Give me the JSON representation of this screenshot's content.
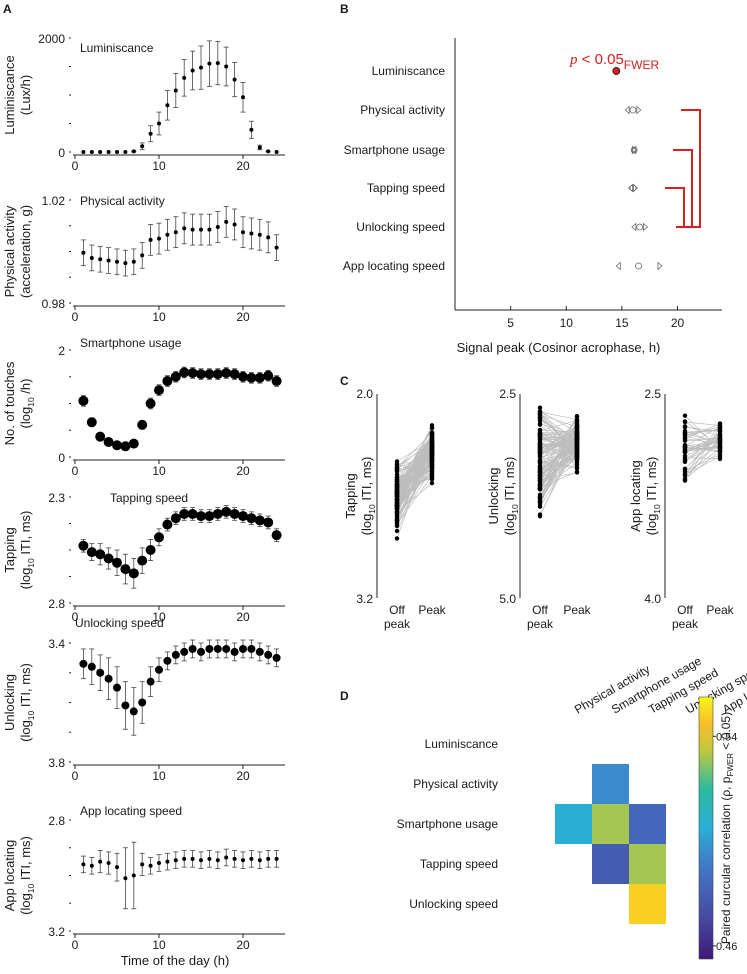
{
  "figure": {
    "panel_labels": [
      "A",
      "B",
      "C",
      "D"
    ],
    "shared_xlabel": "Time of the day (h)"
  },
  "chart_data": [
    {
      "id": "A1",
      "type": "scatter",
      "panel_label": "Luminiscance",
      "ylabel": [
        "Luminiscance",
        "(Lux/h)"
      ],
      "xlabel": "",
      "xlim": [
        0,
        25
      ],
      "ylim": [
        0,
        2000
      ],
      "ytick_labels": [
        "2000",
        "0"
      ],
      "xticks": [
        0,
        10,
        20
      ],
      "xtick_labels": [
        "0",
        "10",
        "20"
      ],
      "invert_y": false,
      "marker": "small",
      "x": [
        1,
        2,
        3,
        4,
        5,
        6,
        7,
        8,
        9,
        10,
        11,
        12,
        13,
        14,
        15,
        16,
        17,
        18,
        19,
        20,
        21,
        22,
        23,
        24
      ],
      "y": [
        0,
        0,
        0,
        0,
        0,
        0,
        10,
        100,
        320,
        500,
        820,
        1080,
        1300,
        1430,
        1480,
        1550,
        1560,
        1500,
        1270,
        960,
        390,
        80,
        10,
        0
      ],
      "err": [
        0,
        0,
        0,
        0,
        0,
        0,
        10,
        60,
        140,
        200,
        260,
        300,
        320,
        340,
        380,
        400,
        380,
        340,
        300,
        260,
        150,
        40,
        5,
        0
      ]
    },
    {
      "id": "A2",
      "type": "scatter",
      "panel_label": "Physical activity",
      "ylabel": [
        "Physical activity",
        "(acceleration, g)"
      ],
      "xlabel": "",
      "xlim": [
        0,
        25
      ],
      "ylim": [
        0.98,
        1.02
      ],
      "ytick_labels": [
        "1.02",
        "0.98"
      ],
      "xticks": [
        0,
        10,
        20
      ],
      "xtick_labels": [
        "0",
        "10",
        "20"
      ],
      "invert_y": false,
      "marker": "small",
      "x": [
        1,
        2,
        3,
        4,
        5,
        6,
        7,
        8,
        9,
        10,
        11,
        12,
        13,
        14,
        15,
        16,
        17,
        18,
        19,
        20,
        21,
        22,
        23,
        24
      ],
      "y": [
        0.9995,
        0.9975,
        0.997,
        0.9965,
        0.996,
        0.9955,
        0.996,
        0.9985,
        1.0045,
        1.005,
        1.0065,
        1.0075,
        1.009,
        1.0085,
        1.0085,
        1.0085,
        1.0095,
        1.0115,
        1.0105,
        1.0075,
        1.007,
        1.0065,
        1.0055,
        1.0015
      ],
      "err": [
        0.005,
        0.005,
        0.005,
        0.005,
        0.005,
        0.005,
        0.005,
        0.005,
        0.006,
        0.006,
        0.006,
        0.006,
        0.006,
        0.006,
        0.006,
        0.006,
        0.006,
        0.006,
        0.006,
        0.006,
        0.006,
        0.006,
        0.006,
        0.005
      ]
    },
    {
      "id": "A3",
      "type": "scatter",
      "panel_label": "Smartphone usage",
      "ylabel": [
        "No. of touches",
        "(log10 /h)"
      ],
      "xlabel": "",
      "xlim": [
        0,
        25
      ],
      "ylim": [
        0,
        2
      ],
      "ytick_labels": [
        "2",
        "0"
      ],
      "xticks": [
        0,
        10,
        20
      ],
      "xtick_labels": [
        "0",
        "10",
        "20"
      ],
      "invert_y": false,
      "marker": "large",
      "x": [
        1,
        2,
        3,
        4,
        5,
        6,
        7,
        8,
        9,
        10,
        11,
        12,
        13,
        14,
        15,
        16,
        17,
        18,
        19,
        20,
        21,
        22,
        23,
        24
      ],
      "y": [
        1.05,
        0.65,
        0.38,
        0.28,
        0.22,
        0.2,
        0.25,
        0.6,
        1.0,
        1.25,
        1.42,
        1.5,
        1.58,
        1.57,
        1.55,
        1.55,
        1.55,
        1.57,
        1.55,
        1.5,
        1.48,
        1.48,
        1.52,
        1.42
      ],
      "err": [
        0.1,
        0.08,
        0.06,
        0.05,
        0.05,
        0.05,
        0.05,
        0.08,
        0.1,
        0.1,
        0.1,
        0.1,
        0.1,
        0.1,
        0.1,
        0.1,
        0.1,
        0.1,
        0.1,
        0.1,
        0.1,
        0.1,
        0.1,
        0.1
      ]
    },
    {
      "id": "A4",
      "type": "scatter",
      "panel_label": "Tapping speed",
      "ylabel": [
        "Tapping",
        "(log10 ITI, ms)"
      ],
      "xlabel": "",
      "xlim": [
        0,
        25
      ],
      "ylim": [
        2.3,
        2.8
      ],
      "ytick_labels": [
        "2.3",
        "2.8"
      ],
      "xticks": [
        0,
        10,
        20
      ],
      "xtick_labels": [
        "0",
        "10",
        "20"
      ],
      "invert_y": true,
      "marker": "large",
      "x": [
        1,
        2,
        3,
        4,
        5,
        6,
        7,
        8,
        9,
        10,
        11,
        12,
        13,
        14,
        15,
        16,
        17,
        18,
        19,
        20,
        21,
        22,
        23,
        24
      ],
      "y": [
        2.53,
        2.56,
        2.57,
        2.59,
        2.61,
        2.64,
        2.66,
        2.6,
        2.55,
        2.49,
        2.43,
        2.4,
        2.38,
        2.38,
        2.39,
        2.39,
        2.38,
        2.37,
        2.38,
        2.39,
        2.4,
        2.41,
        2.42,
        2.48
      ],
      "err": [
        0.03,
        0.04,
        0.05,
        0.05,
        0.06,
        0.07,
        0.07,
        0.06,
        0.05,
        0.04,
        0.03,
        0.03,
        0.03,
        0.03,
        0.03,
        0.03,
        0.03,
        0.03,
        0.03,
        0.03,
        0.03,
        0.03,
        0.03,
        0.03
      ]
    },
    {
      "id": "A5",
      "type": "scatter",
      "panel_label": "Unlocking speed",
      "ylabel": [
        "Unlocking",
        "(log10 ITI, ms)"
      ],
      "xlabel": "",
      "xlim": [
        0,
        25
      ],
      "ylim": [
        3.4,
        3.8
      ],
      "ytick_labels": [
        "3.4",
        "3.8"
      ],
      "xticks": [
        0,
        10,
        20
      ],
      "xtick_labels": [
        "0",
        "10",
        "20"
      ],
      "invert_y": true,
      "marker": "medium",
      "x": [
        1,
        2,
        3,
        4,
        5,
        6,
        7,
        8,
        9,
        10,
        11,
        12,
        13,
        14,
        15,
        16,
        17,
        18,
        19,
        20,
        21,
        22,
        23,
        24
      ],
      "y": [
        3.47,
        3.48,
        3.5,
        3.52,
        3.55,
        3.61,
        3.63,
        3.6,
        3.53,
        3.49,
        3.46,
        3.44,
        3.43,
        3.42,
        3.43,
        3.42,
        3.42,
        3.42,
        3.43,
        3.42,
        3.42,
        3.43,
        3.44,
        3.45
      ],
      "err": [
        0.05,
        0.06,
        0.06,
        0.07,
        0.07,
        0.08,
        0.08,
        0.07,
        0.05,
        0.04,
        0.03,
        0.03,
        0.03,
        0.03,
        0.03,
        0.03,
        0.03,
        0.03,
        0.03,
        0.03,
        0.03,
        0.03,
        0.03,
        0.03
      ]
    },
    {
      "id": "A6",
      "type": "scatter",
      "panel_label": "App locating speed",
      "ylabel": [
        "App locating",
        "(log10 ITI, ms)"
      ],
      "xlabel": "Time of the day (h)",
      "xlim": [
        0,
        25
      ],
      "ylim": [
        2.8,
        3.2
      ],
      "ytick_labels": [
        "2.8",
        "3.2"
      ],
      "xticks": [
        0,
        10,
        20
      ],
      "xtick_labels": [
        "0",
        "10",
        "20"
      ],
      "invert_y": true,
      "marker": "small",
      "x": [
        1,
        2,
        3,
        4,
        5,
        6,
        7,
        8,
        9,
        10,
        11,
        12,
        13,
        14,
        15,
        16,
        17,
        18,
        19,
        20,
        21,
        22,
        23,
        24
      ],
      "y": [
        2.96,
        2.965,
        2.95,
        2.955,
        2.97,
        3.01,
        3.0,
        2.96,
        2.965,
        2.955,
        2.95,
        2.945,
        2.94,
        2.94,
        2.945,
        2.94,
        2.945,
        2.935,
        2.94,
        2.945,
        2.94,
        2.945,
        2.94,
        2.94
      ],
      "err": [
        0.03,
        0.03,
        0.04,
        0.04,
        0.05,
        0.11,
        0.12,
        0.04,
        0.03,
        0.03,
        0.03,
        0.03,
        0.03,
        0.03,
        0.03,
        0.03,
        0.03,
        0.03,
        0.03,
        0.03,
        0.03,
        0.03,
        0.03,
        0.03
      ]
    },
    {
      "id": "B",
      "type": "scatter",
      "title": "",
      "xlabel": "Signal peak (Cosinor acrophase, h)",
      "xlim": [
        0,
        24
      ],
      "xticks": [
        5,
        10,
        15,
        20
      ],
      "xtick_labels": [
        "5",
        "10",
        "15",
        "20"
      ],
      "categories": [
        "Luminiscance",
        "Physical activity",
        "Smartphone usage",
        "Tapping speed",
        "Unlocking speed",
        "App locating speed"
      ],
      "peak": [
        14.5,
        16.0,
        16.1,
        16.0,
        16.6,
        16.5
      ],
      "ci_low": [
        14.2,
        15.3,
        15.9,
        15.6,
        15.9,
        14.5
      ],
      "ci_high": [
        14.8,
        16.7,
        16.3,
        16.4,
        17.3,
        18.6
      ],
      "annotation": {
        "text": "p < 0.05",
        "sub": "FWER",
        "color": "#d42020"
      },
      "significant_pairs": [
        [
          "Physical activity",
          "Unlocking speed"
        ],
        [
          "Smartphone usage",
          "Unlocking speed"
        ],
        [
          "Tapping speed",
          "Unlocking speed"
        ]
      ],
      "bracket_color": "#d42020"
    },
    {
      "id": "C1",
      "type": "line",
      "title": "",
      "ylabel": [
        "Tapping",
        "(log10 ITI, ms)"
      ],
      "categories": [
        "Off\npeak",
        "Peak"
      ],
      "cat_lines": [
        [
          "Off",
          "peak"
        ],
        [
          "Peak"
        ]
      ],
      "ylim": [
        2.0,
        3.2
      ],
      "ytick_labels": [
        "2.0",
        "3.2"
      ],
      "invert_y": true,
      "n_pairs": 120,
      "off_range": [
        2.28,
        3.03
      ],
      "peak_range": [
        2.15,
        2.69
      ],
      "off_mean": 2.62,
      "peak_mean": 2.35
    },
    {
      "id": "C2",
      "type": "line",
      "title": "",
      "ylabel": [
        "Unlocking",
        "(log10 ITI, ms)"
      ],
      "categories": [
        "Off\npeak",
        "Peak"
      ],
      "cat_lines": [
        [
          "Off",
          "peak"
        ],
        [
          "Peak"
        ]
      ],
      "ylim": [
        2.5,
        5.0
      ],
      "ytick_labels": [
        "2.5",
        "5.0"
      ],
      "invert_y": true,
      "n_pairs": 120,
      "off_range": [
        2.55,
        4.75
      ],
      "peak_range": [
        2.55,
        3.75
      ],
      "off_mean": 3.35,
      "peak_mean": 3.1
    },
    {
      "id": "C3",
      "type": "line",
      "title": "",
      "ylabel": [
        "App locating",
        "(log10 ITI, ms)"
      ],
      "categories": [
        "Off\npeak",
        "Peak"
      ],
      "cat_lines": [
        [
          "Off",
          "peak"
        ],
        [
          "Peak"
        ]
      ],
      "ylim": [
        2.5,
        4.0
      ],
      "ytick_labels": [
        "2.5",
        "4.0"
      ],
      "invert_y": true,
      "n_pairs": 45,
      "off_range": [
        2.6,
        3.5
      ],
      "peak_range": [
        2.55,
        3.1
      ],
      "off_mean": 2.9,
      "peak_mean": 2.85
    },
    {
      "id": "D",
      "type": "heatmap",
      "rows": [
        "Luminiscance",
        "Physical activity",
        "Smartphone usage",
        "Tapping speed",
        "Unlocking speed"
      ],
      "columns": [
        "Physical activity",
        "Smartphone usage",
        "Tapping speed",
        "Unlocking speed",
        "App locating speed"
      ],
      "values": [
        [
          null,
          null,
          null,
          null,
          null
        ],
        [
          null,
          0.495,
          null,
          null,
          null
        ],
        [
          0.505,
          0.532,
          0.483,
          null,
          null
        ],
        [
          null,
          0.478,
          0.532,
          null,
          null
        ],
        [
          null,
          null,
          0.548,
          null,
          null
        ]
      ],
      "colorbar": {
        "min": 0.455,
        "max": 0.555,
        "tick_labels": [
          "0.54",
          "0.46"
        ],
        "tick_values": [
          0.54,
          0.46
        ]
      },
      "colorbar_label": "Paired  curcular correlation (ρ, p",
      "colorbar_label_sub": "FWER",
      "colorbar_label_tail": " < 0.05)"
    }
  ]
}
